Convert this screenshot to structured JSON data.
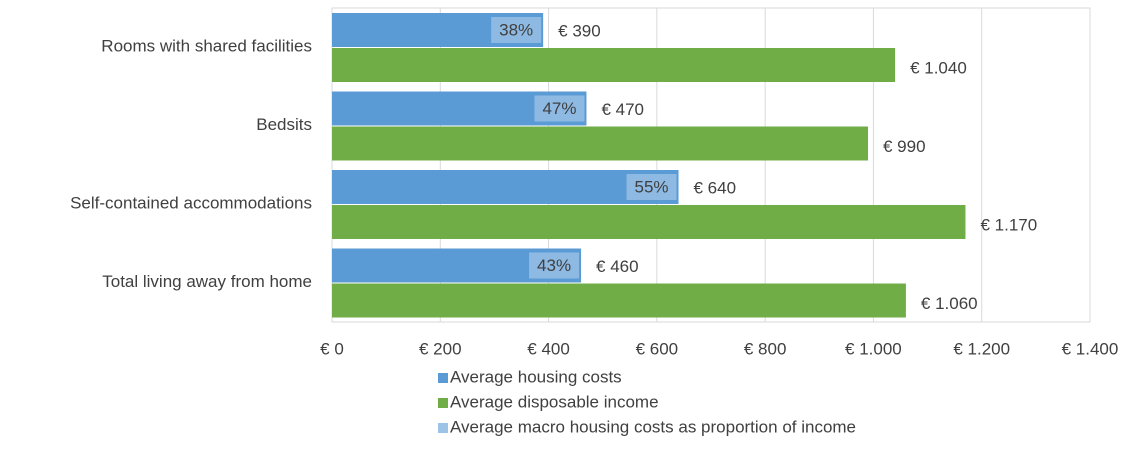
{
  "chart_data": {
    "type": "bar",
    "orientation": "horizontal",
    "categories": [
      "Rooms with shared facilities",
      "Bedsits",
      "Self-contained accommodations",
      "Total living away from home"
    ],
    "series": [
      {
        "name": "Average housing costs",
        "color": "#5b9bd5",
        "values": [
          390,
          470,
          640,
          460
        ],
        "value_labels": [
          "€ 390",
          "€ 470",
          "€ 640",
          "€ 460"
        ]
      },
      {
        "name": "Average disposable income",
        "color": "#70ad47",
        "values": [
          1040,
          990,
          1170,
          1060
        ],
        "value_labels": [
          "€ 1.040",
          "€ 990",
          "€ 1.170",
          "€ 1.060"
        ]
      },
      {
        "name": "Average macro housing costs as proportion of income",
        "color": "#9dc3e6",
        "values": [
          38,
          47,
          55,
          43
        ],
        "value_labels": [
          "38%",
          "47%",
          "55%",
          "43%"
        ]
      }
    ],
    "xlim": [
      0,
      1400
    ],
    "xticks": [
      {
        "value": 0,
        "label": "€ 0"
      },
      {
        "value": 200,
        "label": "€ 200"
      },
      {
        "value": 400,
        "label": "€ 400"
      },
      {
        "value": 600,
        "label": "€ 600"
      },
      {
        "value": 800,
        "label": "€ 800"
      },
      {
        "value": 1000,
        "label": "€ 1.000"
      },
      {
        "value": 1200,
        "label": "€ 1.200"
      },
      {
        "value": 1400,
        "label": "€ 1.400"
      }
    ],
    "grid": true,
    "legend": "bottom"
  }
}
